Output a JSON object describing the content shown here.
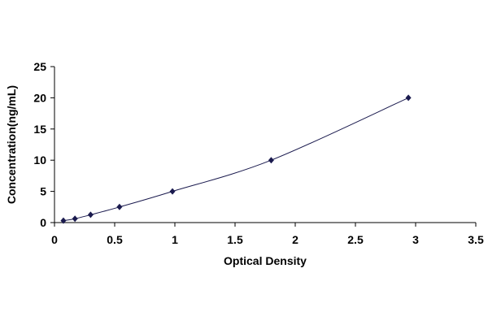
{
  "chart_data": {
    "type": "scatter",
    "title": "",
    "xlabel": "Optical Density",
    "ylabel": "Concentration(ng/mL)",
    "xlim": [
      0,
      3.5
    ],
    "ylim": [
      0,
      25
    ],
    "xticks": [
      0,
      0.5,
      1,
      1.5,
      2,
      2.5,
      3,
      3.5
    ],
    "xtick_labels": [
      "0",
      "0.5",
      "1",
      "1.5",
      "2",
      "2.5",
      "3",
      "3.5"
    ],
    "yticks": [
      0,
      5,
      10,
      15,
      20,
      25
    ],
    "ytick_labels": [
      "0",
      "5",
      "10",
      "15",
      "20",
      "25"
    ],
    "grid": false,
    "series": [
      {
        "x": [
          0.074,
          0.17,
          0.3,
          0.54,
          0.98,
          1.8,
          2.94
        ],
        "y": [
          0.312,
          0.625,
          1.25,
          2.5,
          5,
          10,
          20
        ],
        "marker": "diamond",
        "color": "#1a1a4e",
        "line": "smooth fit"
      }
    ]
  }
}
